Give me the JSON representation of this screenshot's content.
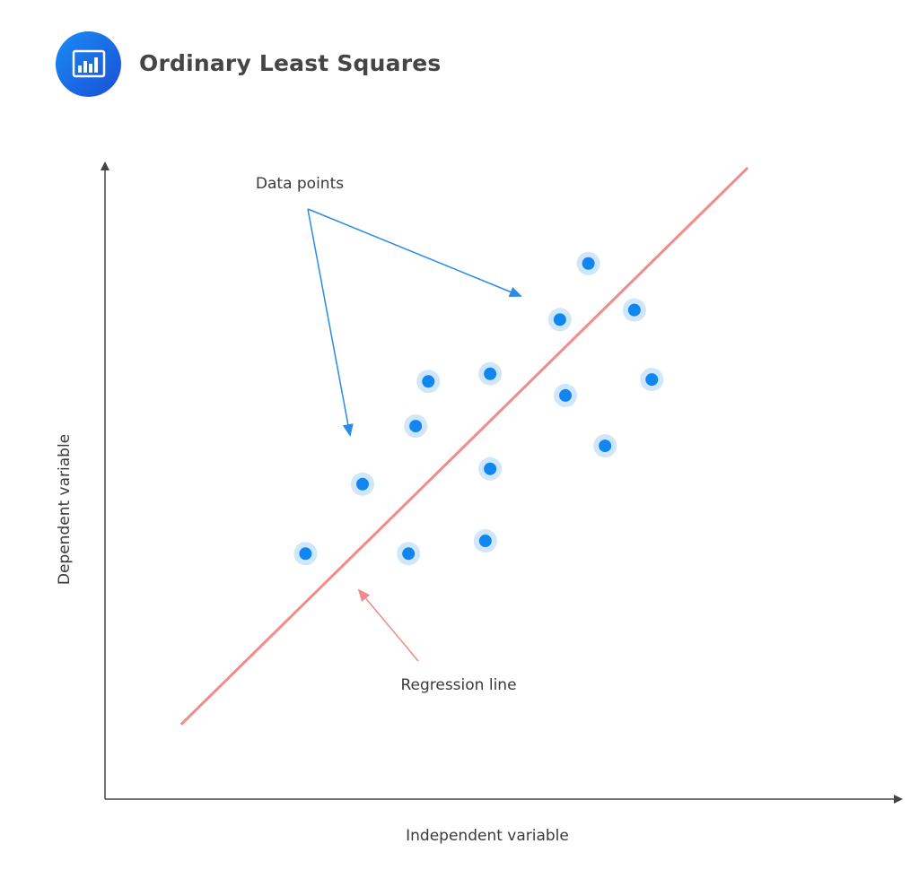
{
  "header": {
    "title": "Ordinary Least Squares",
    "icon": "bar-chart-icon"
  },
  "chart_data": {
    "type": "scatter",
    "title": "Ordinary Least Squares",
    "xlabel": "Independent variable",
    "ylabel": "Dependent variable",
    "xlim": [
      0,
      100
    ],
    "ylim": [
      0,
      100
    ],
    "grid": false,
    "ticks": false,
    "points": [
      {
        "x": 25.3,
        "y": 38.5
      },
      {
        "x": 32.5,
        "y": 49.4
      },
      {
        "x": 38.3,
        "y": 38.5
      },
      {
        "x": 39.2,
        "y": 58.5
      },
      {
        "x": 40.8,
        "y": 65.5
      },
      {
        "x": 48.0,
        "y": 40.5
      },
      {
        "x": 48.6,
        "y": 51.8
      },
      {
        "x": 48.6,
        "y": 66.7
      },
      {
        "x": 57.4,
        "y": 75.2
      },
      {
        "x": 58.1,
        "y": 63.3
      },
      {
        "x": 61.0,
        "y": 84.0
      },
      {
        "x": 63.1,
        "y": 55.4
      },
      {
        "x": 66.8,
        "y": 76.7
      },
      {
        "x": 69.0,
        "y": 65.8
      }
    ],
    "regression_line": {
      "start": {
        "x": 9.6,
        "y": 11.7
      },
      "end": {
        "x": 81.1,
        "y": 99.0
      }
    },
    "annotations": [
      {
        "text": "Data points",
        "targets": "points"
      },
      {
        "text": "Regression line",
        "targets": "regression_line"
      }
    ],
    "colors": {
      "point": "#0f86f0",
      "point_halo": "#cfe6fb",
      "line": "#f28b8b",
      "data_arrow": "#2a8be8",
      "line_arrow": "#f28b8b",
      "axis": "#444444"
    }
  }
}
